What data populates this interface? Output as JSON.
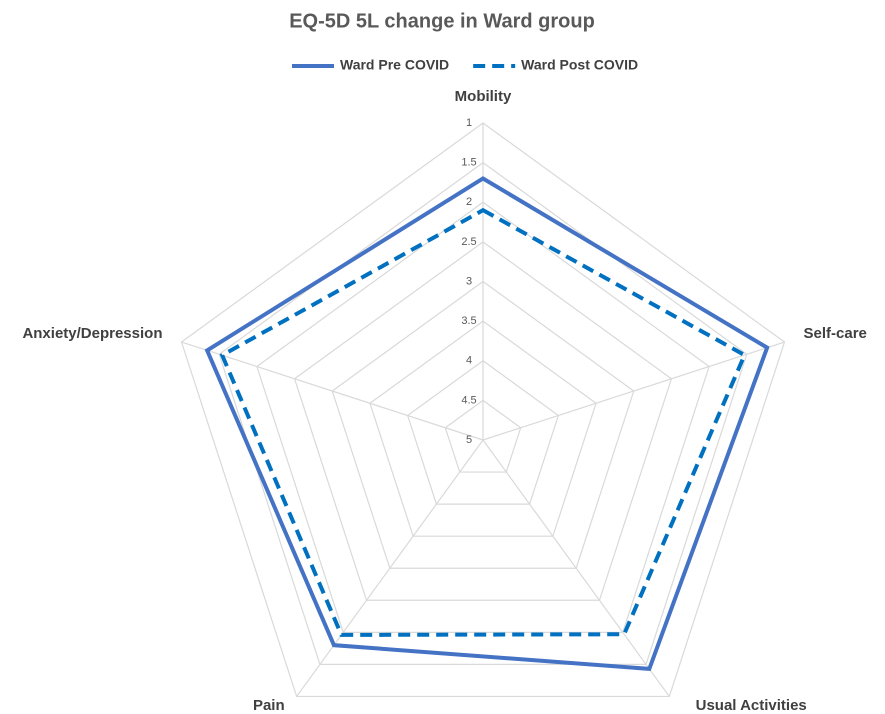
{
  "chart_data": {
    "type": "radar",
    "title": "EQ-5D 5L change in Ward group",
    "categories": [
      "Mobility",
      "Self-care",
      "Usual Activities",
      "Pain",
      "Anxiety/Depression"
    ],
    "series": [
      {
        "name": "Ward Pre COVID",
        "color": "#4472c4",
        "line_style": "solid",
        "values": [
          1.7,
          1.23,
          1.43,
          1.8,
          1.34
        ]
      },
      {
        "name": "Ward Post COVID",
        "color": "#0070c0",
        "line_style": "dashed",
        "values": [
          2.1,
          1.53,
          1.97,
          1.96,
          1.54
        ]
      }
    ],
    "rlim": [
      1,
      5
    ],
    "reversed": true,
    "rticks": [
      1,
      1.5,
      2,
      2.5,
      3,
      3.5,
      4,
      4.5,
      5
    ],
    "grid": true,
    "legend": "top"
  }
}
